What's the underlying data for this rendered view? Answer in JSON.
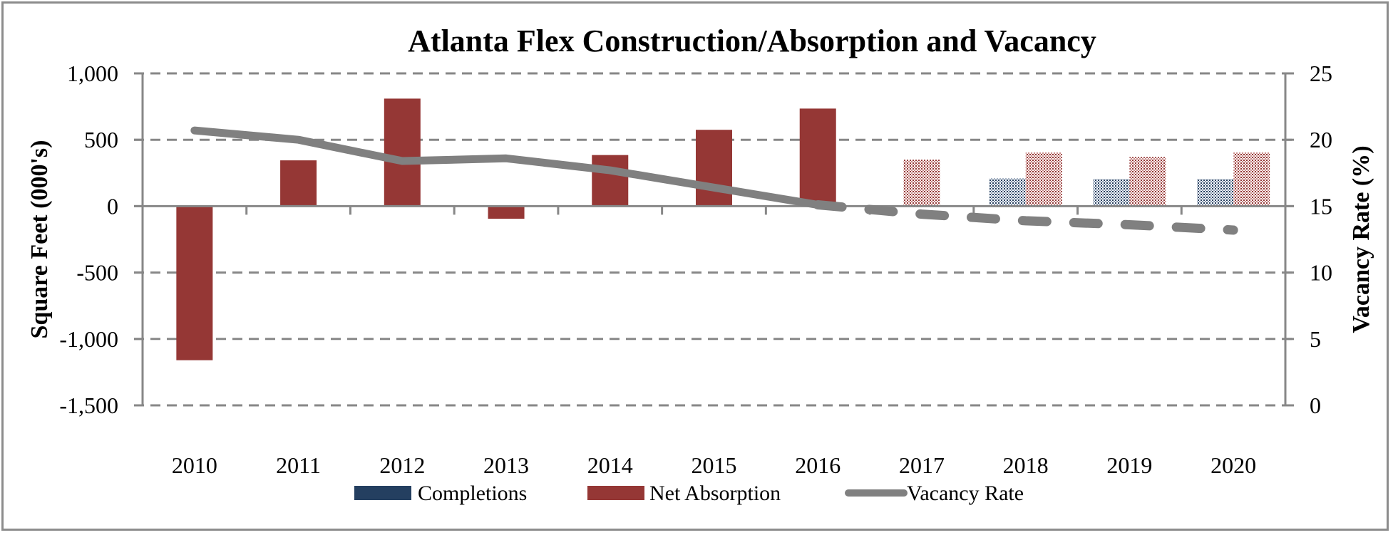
{
  "chart_data": {
    "type": "bar",
    "title": "Atlanta Flex Construction/Absorption and Vacancy",
    "categories": [
      "2010",
      "2011",
      "2012",
      "2013",
      "2014",
      "2015",
      "2016",
      "2017",
      "2018",
      "2019",
      "2020"
    ],
    "ylabel": "Square Feet (000's)",
    "y2label": "Vacancy Rate (%)",
    "ylim": [
      -1500,
      1000
    ],
    "y2lim": [
      0,
      25
    ],
    "yticks": [
      "1,000",
      "500",
      "0",
      "-500",
      "-1,000",
      "-1,500"
    ],
    "ytick_values": [
      1000,
      500,
      0,
      -500,
      -1000,
      -1500
    ],
    "y2ticks": [
      "25",
      "20",
      "15",
      "10",
      "5",
      "0"
    ],
    "y2tick_values": [
      25,
      20,
      15,
      10,
      5,
      0
    ],
    "grid": true,
    "legend_position": "bottom",
    "forecast_start_index": 7,
    "series": [
      {
        "name": "Completions",
        "type": "bar",
        "axis": "left",
        "color": "#243F60",
        "values": [
          0,
          0,
          0,
          0,
          0,
          0,
          0,
          0,
          210,
          205,
          205
        ]
      },
      {
        "name": "Net Absorption",
        "type": "bar",
        "axis": "left",
        "color": "#953735",
        "values": [
          -1160,
          345,
          810,
          -95,
          385,
          575,
          735,
          350,
          405,
          370,
          405
        ]
      },
      {
        "name": "Vacancy Rate",
        "type": "line",
        "axis": "right",
        "color": "#808080",
        "values": [
          20.7,
          20.0,
          18.4,
          18.6,
          17.7,
          16.4,
          15.1,
          14.4,
          13.9,
          13.6,
          13.2
        ]
      }
    ]
  }
}
